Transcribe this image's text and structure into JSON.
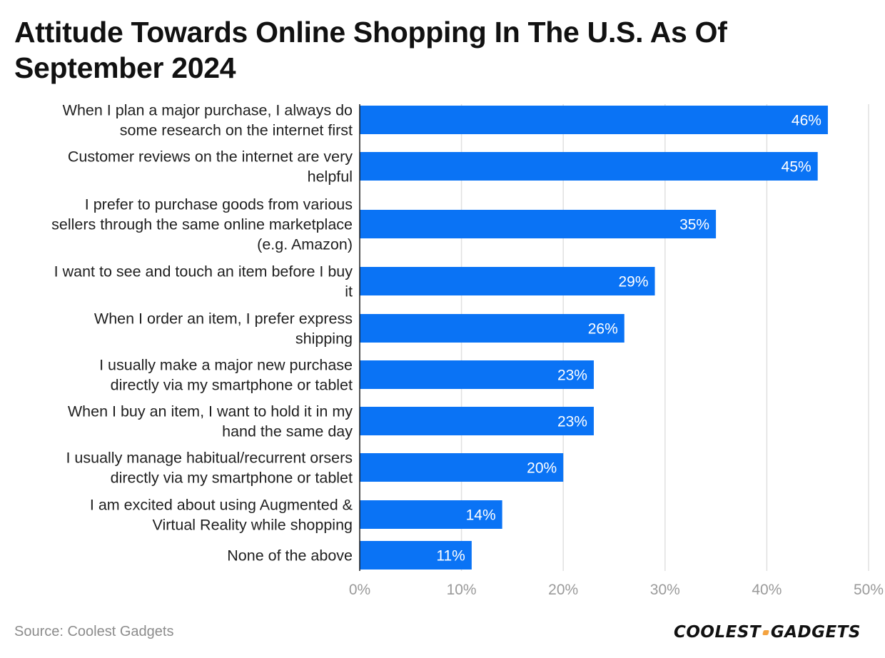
{
  "title": "Attitude Towards Online Shopping In The U.S. As Of September 2024",
  "source": "Source: Coolest Gadgets",
  "logo": {
    "part1": "COOLEST",
    "part2": "GADGETS"
  },
  "colors": {
    "bar": "#0a73f5",
    "grid": "#e0e0e0",
    "axis": "#1a1a1a"
  },
  "chart_data": {
    "type": "bar",
    "orientation": "horizontal",
    "xlim": [
      0,
      50
    ],
    "grid": true,
    "ticks": [
      "0%",
      "10%",
      "20%",
      "30%",
      "40%",
      "50%"
    ],
    "tick_values": [
      0,
      10,
      20,
      30,
      40,
      50
    ],
    "categories": [
      [
        "When I plan a major purchase, I always do",
        "some research on the internet first"
      ],
      [
        "Customer reviews on the internet are very",
        "helpful"
      ],
      [
        "I prefer to purchase goods from various",
        "sellers through the same online marketplace",
        "(e.g. Amazon)"
      ],
      [
        "I want to see and touch an item before I buy",
        "it"
      ],
      [
        "When I order an item, I prefer express",
        "shipping"
      ],
      [
        "I usually make a major new purchase",
        "directly via my smartphone or tablet"
      ],
      [
        "When I buy an item, I want to hold it in my",
        "hand the same day"
      ],
      [
        "I usually manage habitual/recurrent orsers",
        "directly via my smartphone or tablet"
      ],
      [
        "I am excited about using Augmented &",
        "Virtual Reality while shopping"
      ],
      [
        "None of the above"
      ]
    ],
    "values": [
      46,
      45,
      35,
      29,
      26,
      23,
      23,
      20,
      14,
      11
    ],
    "value_labels": [
      "46%",
      "45%",
      "35%",
      "29%",
      "26%",
      "23%",
      "23%",
      "20%",
      "14%",
      "11%"
    ]
  }
}
